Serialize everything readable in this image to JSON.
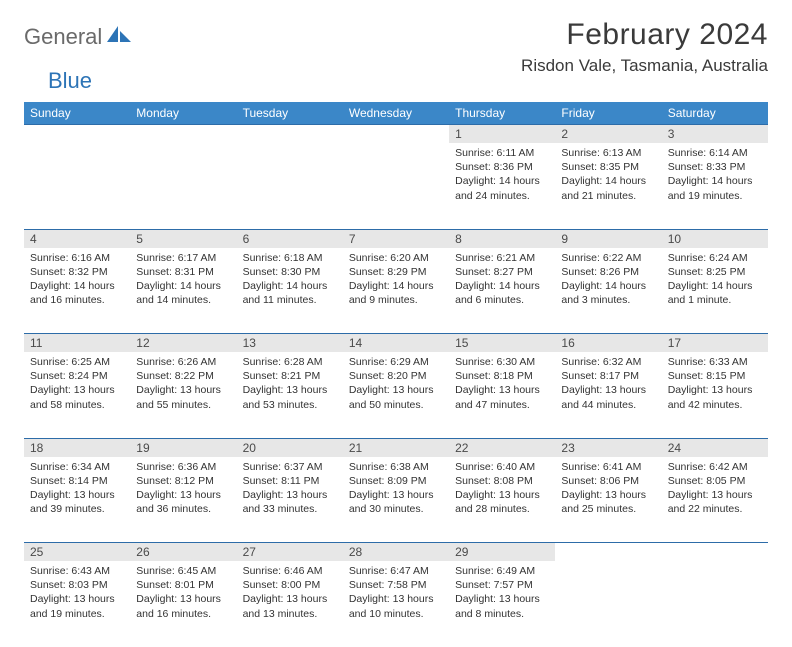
{
  "brand": {
    "part1": "General",
    "part2": "Blue"
  },
  "title": "February 2024",
  "location": "Risdon Vale, Tasmania, Australia",
  "colors": {
    "header_bg": "#3b87c8",
    "header_text": "#ffffff",
    "daynum_bg": "#e7e7e7",
    "rule": "#2d6ca8",
    "text": "#333333",
    "brand_gray": "#6a6a6a",
    "brand_blue": "#2d74b6"
  },
  "weekdays": [
    "Sunday",
    "Monday",
    "Tuesday",
    "Wednesday",
    "Thursday",
    "Friday",
    "Saturday"
  ],
  "weeks": [
    {
      "nums": [
        "",
        "",
        "",
        "",
        "1",
        "2",
        "3"
      ],
      "cells": [
        null,
        null,
        null,
        null,
        {
          "l1": "Sunrise: 6:11 AM",
          "l2": "Sunset: 8:36 PM",
          "l3": "Daylight: 14 hours",
          "l4": "and 24 minutes."
        },
        {
          "l1": "Sunrise: 6:13 AM",
          "l2": "Sunset: 8:35 PM",
          "l3": "Daylight: 14 hours",
          "l4": "and 21 minutes."
        },
        {
          "l1": "Sunrise: 6:14 AM",
          "l2": "Sunset: 8:33 PM",
          "l3": "Daylight: 14 hours",
          "l4": "and 19 minutes."
        }
      ]
    },
    {
      "nums": [
        "4",
        "5",
        "6",
        "7",
        "8",
        "9",
        "10"
      ],
      "cells": [
        {
          "l1": "Sunrise: 6:16 AM",
          "l2": "Sunset: 8:32 PM",
          "l3": "Daylight: 14 hours",
          "l4": "and 16 minutes."
        },
        {
          "l1": "Sunrise: 6:17 AM",
          "l2": "Sunset: 8:31 PM",
          "l3": "Daylight: 14 hours",
          "l4": "and 14 minutes."
        },
        {
          "l1": "Sunrise: 6:18 AM",
          "l2": "Sunset: 8:30 PM",
          "l3": "Daylight: 14 hours",
          "l4": "and 11 minutes."
        },
        {
          "l1": "Sunrise: 6:20 AM",
          "l2": "Sunset: 8:29 PM",
          "l3": "Daylight: 14 hours",
          "l4": "and 9 minutes."
        },
        {
          "l1": "Sunrise: 6:21 AM",
          "l2": "Sunset: 8:27 PM",
          "l3": "Daylight: 14 hours",
          "l4": "and 6 minutes."
        },
        {
          "l1": "Sunrise: 6:22 AM",
          "l2": "Sunset: 8:26 PM",
          "l3": "Daylight: 14 hours",
          "l4": "and 3 minutes."
        },
        {
          "l1": "Sunrise: 6:24 AM",
          "l2": "Sunset: 8:25 PM",
          "l3": "Daylight: 14 hours",
          "l4": "and 1 minute."
        }
      ]
    },
    {
      "nums": [
        "11",
        "12",
        "13",
        "14",
        "15",
        "16",
        "17"
      ],
      "cells": [
        {
          "l1": "Sunrise: 6:25 AM",
          "l2": "Sunset: 8:24 PM",
          "l3": "Daylight: 13 hours",
          "l4": "and 58 minutes."
        },
        {
          "l1": "Sunrise: 6:26 AM",
          "l2": "Sunset: 8:22 PM",
          "l3": "Daylight: 13 hours",
          "l4": "and 55 minutes."
        },
        {
          "l1": "Sunrise: 6:28 AM",
          "l2": "Sunset: 8:21 PM",
          "l3": "Daylight: 13 hours",
          "l4": "and 53 minutes."
        },
        {
          "l1": "Sunrise: 6:29 AM",
          "l2": "Sunset: 8:20 PM",
          "l3": "Daylight: 13 hours",
          "l4": "and 50 minutes."
        },
        {
          "l1": "Sunrise: 6:30 AM",
          "l2": "Sunset: 8:18 PM",
          "l3": "Daylight: 13 hours",
          "l4": "and 47 minutes."
        },
        {
          "l1": "Sunrise: 6:32 AM",
          "l2": "Sunset: 8:17 PM",
          "l3": "Daylight: 13 hours",
          "l4": "and 44 minutes."
        },
        {
          "l1": "Sunrise: 6:33 AM",
          "l2": "Sunset: 8:15 PM",
          "l3": "Daylight: 13 hours",
          "l4": "and 42 minutes."
        }
      ]
    },
    {
      "nums": [
        "18",
        "19",
        "20",
        "21",
        "22",
        "23",
        "24"
      ],
      "cells": [
        {
          "l1": "Sunrise: 6:34 AM",
          "l2": "Sunset: 8:14 PM",
          "l3": "Daylight: 13 hours",
          "l4": "and 39 minutes."
        },
        {
          "l1": "Sunrise: 6:36 AM",
          "l2": "Sunset: 8:12 PM",
          "l3": "Daylight: 13 hours",
          "l4": "and 36 minutes."
        },
        {
          "l1": "Sunrise: 6:37 AM",
          "l2": "Sunset: 8:11 PM",
          "l3": "Daylight: 13 hours",
          "l4": "and 33 minutes."
        },
        {
          "l1": "Sunrise: 6:38 AM",
          "l2": "Sunset: 8:09 PM",
          "l3": "Daylight: 13 hours",
          "l4": "and 30 minutes."
        },
        {
          "l1": "Sunrise: 6:40 AM",
          "l2": "Sunset: 8:08 PM",
          "l3": "Daylight: 13 hours",
          "l4": "and 28 minutes."
        },
        {
          "l1": "Sunrise: 6:41 AM",
          "l2": "Sunset: 8:06 PM",
          "l3": "Daylight: 13 hours",
          "l4": "and 25 minutes."
        },
        {
          "l1": "Sunrise: 6:42 AM",
          "l2": "Sunset: 8:05 PM",
          "l3": "Daylight: 13 hours",
          "l4": "and 22 minutes."
        }
      ]
    },
    {
      "nums": [
        "25",
        "26",
        "27",
        "28",
        "29",
        "",
        ""
      ],
      "cells": [
        {
          "l1": "Sunrise: 6:43 AM",
          "l2": "Sunset: 8:03 PM",
          "l3": "Daylight: 13 hours",
          "l4": "and 19 minutes."
        },
        {
          "l1": "Sunrise: 6:45 AM",
          "l2": "Sunset: 8:01 PM",
          "l3": "Daylight: 13 hours",
          "l4": "and 16 minutes."
        },
        {
          "l1": "Sunrise: 6:46 AM",
          "l2": "Sunset: 8:00 PM",
          "l3": "Daylight: 13 hours",
          "l4": "and 13 minutes."
        },
        {
          "l1": "Sunrise: 6:47 AM",
          "l2": "Sunset: 7:58 PM",
          "l3": "Daylight: 13 hours",
          "l4": "and 10 minutes."
        },
        {
          "l1": "Sunrise: 6:49 AM",
          "l2": "Sunset: 7:57 PM",
          "l3": "Daylight: 13 hours",
          "l4": "and 8 minutes."
        },
        null,
        null
      ]
    }
  ]
}
